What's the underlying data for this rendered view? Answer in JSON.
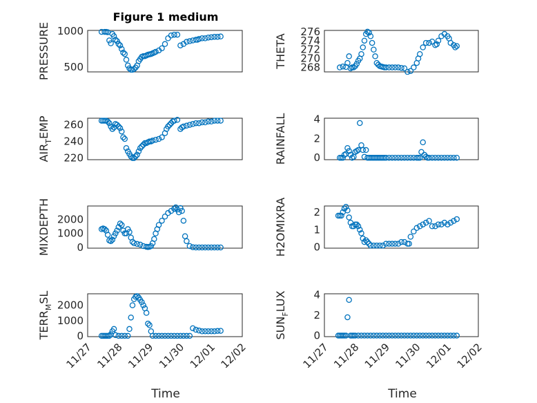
{
  "figure": {
    "title": "Figure 1 medium",
    "marker_color": "#0072bd",
    "grid": "on (major and minor)",
    "xlabel": "Time",
    "x_ticks": [
      "11/27",
      "11/28",
      "11/29",
      "11/30",
      "12/01",
      "12/02"
    ]
  },
  "chart_data": [
    {
      "type": "scatter",
      "name": "PRESSURE",
      "ylabel": "PRESSURE",
      "title": "Figure 1 medium",
      "xlabel": "",
      "xlim": [
        0,
        5
      ],
      "ylim": [
        430,
        1010
      ],
      "yticks": [
        500,
        1000
      ],
      "x": [
        0.45,
        0.55,
        0.6,
        0.65,
        0.7,
        0.75,
        0.8,
        0.85,
        0.9,
        0.95,
        1.0,
        1.05,
        1.1,
        1.15,
        1.2,
        1.25,
        1.3,
        1.35,
        1.4,
        1.45,
        1.5,
        1.55,
        1.6,
        1.65,
        1.7,
        1.75,
        1.8,
        1.85,
        1.9,
        1.95,
        2.0,
        2.05,
        2.1,
        2.15,
        2.2,
        2.3,
        2.4,
        2.5,
        2.6,
        2.7,
        2.8,
        2.9,
        3.0,
        3.1,
        3.2,
        3.3,
        3.4,
        3.5,
        3.55,
        3.6,
        3.7,
        3.8,
        3.9,
        4.0,
        4.1,
        4.2,
        4.3
      ],
      "y": [
        990,
        990,
        990,
        985,
        870,
        830,
        960,
        930,
        880,
        860,
        820,
        800,
        750,
        700,
        680,
        600,
        520,
        480,
        460,
        460,
        470,
        490,
        520,
        580,
        610,
        640,
        650,
        650,
        660,
        670,
        675,
        680,
        690,
        700,
        710,
        730,
        760,
        820,
        900,
        940,
        950,
        950,
        800,
        820,
        850,
        860,
        870,
        880,
        880,
        890,
        900,
        900,
        910,
        915,
        920,
        920,
        925
      ]
    },
    {
      "type": "scatter",
      "name": "THETA",
      "ylabel": "THETA",
      "xlim": [
        0,
        5
      ],
      "ylim": [
        267,
        276.3
      ],
      "yticks": [
        268,
        270,
        272,
        274,
        276
      ],
      "x": [
        0.5,
        0.6,
        0.7,
        0.75,
        0.8,
        0.85,
        0.9,
        0.95,
        1.0,
        1.05,
        1.1,
        1.15,
        1.2,
        1.25,
        1.3,
        1.35,
        1.4,
        1.45,
        1.5,
        1.55,
        1.6,
        1.65,
        1.7,
        1.75,
        1.8,
        1.85,
        1.9,
        1.95,
        2.0,
        2.1,
        2.2,
        2.3,
        2.4,
        2.5,
        2.6,
        2.7,
        2.8,
        2.9,
        3.0,
        3.05,
        3.1,
        3.2,
        3.3,
        3.4,
        3.5,
        3.6,
        3.65,
        3.7,
        3.8,
        3.9,
        4.0,
        4.05,
        4.1,
        4.2,
        4.25,
        4.3
      ],
      "y": [
        268,
        268.2,
        268.1,
        269,
        270.5,
        267.8,
        268,
        268,
        268.3,
        268.8,
        269.5,
        270,
        271,
        272.5,
        274,
        275.5,
        276,
        275.8,
        275,
        273.5,
        272,
        270.5,
        269,
        268.6,
        268.3,
        268.2,
        268.1,
        268,
        268,
        268,
        268,
        268,
        268,
        267.9,
        267.8,
        267,
        267.2,
        268,
        269,
        270,
        271,
        272.5,
        273.5,
        273.5,
        273.8,
        273,
        273.2,
        274,
        275,
        275.5,
        275,
        274.5,
        273.5,
        273,
        272.5,
        272.8
      ]
    },
    {
      "type": "scatter",
      "name": "AIR_TEMP",
      "ylabel": "AIR_TEMP",
      "xlim": [
        0,
        5
      ],
      "ylim": [
        218,
        268
      ],
      "yticks": [
        220,
        240,
        260
      ],
      "x": [
        0.45,
        0.5,
        0.55,
        0.6,
        0.65,
        0.7,
        0.75,
        0.8,
        0.85,
        0.9,
        0.95,
        1.0,
        1.05,
        1.1,
        1.15,
        1.2,
        1.25,
        1.3,
        1.35,
        1.4,
        1.45,
        1.5,
        1.55,
        1.6,
        1.65,
        1.7,
        1.75,
        1.8,
        1.85,
        1.9,
        1.95,
        2.0,
        2.05,
        2.1,
        2.2,
        2.3,
        2.4,
        2.5,
        2.55,
        2.6,
        2.65,
        2.7,
        2.75,
        2.8,
        2.9,
        3.0,
        3.05,
        3.1,
        3.2,
        3.3,
        3.4,
        3.5,
        3.6,
        3.7,
        3.8,
        3.9,
        4.0,
        4.1,
        4.2,
        4.3
      ],
      "y": [
        265,
        265,
        265,
        265,
        264,
        262,
        258,
        255,
        257,
        261,
        260,
        258,
        256,
        252,
        245,
        243,
        232,
        228,
        225,
        222,
        220,
        220,
        222,
        224,
        228,
        232,
        234,
        236,
        238,
        238,
        239,
        240,
        240,
        241,
        242,
        243,
        245,
        250,
        255,
        258,
        260,
        262,
        264,
        265,
        266,
        255,
        257,
        258,
        259,
        260,
        261,
        262,
        262,
        263,
        263,
        264,
        264,
        265,
        265,
        265
      ]
    },
    {
      "type": "scatter",
      "name": "RAINFALL",
      "ylabel": "RAINFALL",
      "xlim": [
        0,
        5
      ],
      "ylim": [
        -0.2,
        4.1
      ],
      "yticks": [
        0,
        2,
        4
      ],
      "x": [
        0.5,
        0.55,
        0.6,
        0.65,
        0.7,
        0.75,
        0.8,
        0.85,
        0.9,
        0.95,
        1.0,
        1.05,
        1.1,
        1.15,
        1.2,
        1.25,
        1.3,
        1.35,
        1.4,
        1.45,
        1.5,
        1.55,
        1.6,
        1.65,
        1.7,
        1.75,
        1.8,
        1.85,
        1.9,
        1.95,
        2.0,
        2.1,
        2.2,
        2.3,
        2.4,
        2.5,
        2.6,
        2.7,
        2.8,
        2.9,
        3.0,
        3.05,
        3.1,
        3.15,
        3.2,
        3.25,
        3.3,
        3.35,
        3.4,
        3.5,
        3.6,
        3.7,
        3.8,
        3.9,
        4.0,
        4.1,
        4.2,
        4.3
      ],
      "y": [
        0,
        0,
        0,
        0.3,
        0.4,
        1.0,
        0.7,
        0.3,
        0,
        0.1,
        0.6,
        0.7,
        0.8,
        3.6,
        1.3,
        0.8,
        0.1,
        0.8,
        0,
        0,
        0,
        0,
        0,
        0,
        0,
        0,
        0,
        0,
        0,
        0,
        0,
        0,
        0,
        0,
        0,
        0,
        0,
        0,
        0,
        0,
        0,
        0,
        0,
        0.6,
        1.6,
        0.3,
        0.1,
        0,
        0,
        0,
        0,
        0,
        0,
        0,
        0,
        0,
        0,
        0
      ]
    },
    {
      "type": "scatter",
      "name": "MIXDEPTH",
      "ylabel": "MIXDEPTH",
      "xlim": [
        0,
        5
      ],
      "ylim": [
        -50,
        2950
      ],
      "yticks": [
        0,
        1000,
        2000
      ],
      "x": [
        0.45,
        0.5,
        0.55,
        0.6,
        0.65,
        0.7,
        0.75,
        0.8,
        0.85,
        0.9,
        0.95,
        1.0,
        1.05,
        1.1,
        1.15,
        1.2,
        1.25,
        1.3,
        1.35,
        1.4,
        1.45,
        1.5,
        1.6,
        1.7,
        1.8,
        1.9,
        1.95,
        2.0,
        2.05,
        2.1,
        2.15,
        2.2,
        2.25,
        2.3,
        2.4,
        2.5,
        2.6,
        2.7,
        2.8,
        2.85,
        2.9,
        2.95,
        3.0,
        3.05,
        3.1,
        3.15,
        3.2,
        3.3,
        3.4,
        3.5,
        3.6,
        3.7,
        3.8,
        3.9,
        4.0,
        4.1,
        4.2,
        4.3
      ],
      "y": [
        1300,
        1350,
        1300,
        1200,
        900,
        500,
        450,
        550,
        800,
        1000,
        1200,
        1450,
        1700,
        1600,
        1200,
        1000,
        1000,
        1300,
        1100,
        700,
        400,
        300,
        250,
        200,
        100,
        50,
        30,
        50,
        100,
        300,
        600,
        1000,
        1300,
        1600,
        1900,
        2200,
        2450,
        2600,
        2750,
        2850,
        2700,
        2500,
        2800,
        2600,
        1900,
        800,
        450,
        100,
        20,
        0,
        0,
        0,
        0,
        0,
        0,
        0,
        0,
        0
      ]
    },
    {
      "type": "scatter",
      "name": "H2OMIXRA",
      "ylabel": "H2OMIXRA",
      "xlim": [
        0,
        5
      ],
      "ylim": [
        -0.05,
        2.35
      ],
      "yticks": [
        0,
        1,
        2
      ],
      "x": [
        0.45,
        0.5,
        0.55,
        0.6,
        0.65,
        0.7,
        0.75,
        0.8,
        0.85,
        0.9,
        0.95,
        1.0,
        1.05,
        1.1,
        1.15,
        1.2,
        1.25,
        1.3,
        1.35,
        1.4,
        1.45,
        1.5,
        1.6,
        1.7,
        1.8,
        1.9,
        2.0,
        2.1,
        2.2,
        2.3,
        2.4,
        2.5,
        2.6,
        2.7,
        2.75,
        2.8,
        2.9,
        3.0,
        3.1,
        3.2,
        3.3,
        3.4,
        3.5,
        3.6,
        3.7,
        3.8,
        3.9,
        4.0,
        4.1,
        4.2,
        4.3
      ],
      "y": [
        1.8,
        1.8,
        1.8,
        2.0,
        2.2,
        2.3,
        2.1,
        1.7,
        1.4,
        1.2,
        1.2,
        1.3,
        1.3,
        1.2,
        1.0,
        0.8,
        0.5,
        0.3,
        0.4,
        0.3,
        0.2,
        0.1,
        0.1,
        0.1,
        0.1,
        0.1,
        0.2,
        0.2,
        0.2,
        0.2,
        0.2,
        0.3,
        0.3,
        0.2,
        0.2,
        0.6,
        0.9,
        1.1,
        1.2,
        1.3,
        1.4,
        1.5,
        1.2,
        1.2,
        1.3,
        1.3,
        1.4,
        1.3,
        1.4,
        1.5,
        1.6
      ]
    },
    {
      "type": "scatter",
      "name": "TERR_MSL",
      "ylabel": "TERR_MSL",
      "xlim": [
        0,
        5
      ],
      "ylim": [
        -50,
        2750
      ],
      "yticks": [
        0,
        1000,
        2000
      ],
      "x": [
        0.45,
        0.5,
        0.55,
        0.6,
        0.65,
        0.7,
        0.75,
        0.8,
        0.85,
        0.9,
        1.0,
        1.1,
        1.2,
        1.3,
        1.35,
        1.4,
        1.45,
        1.5,
        1.55,
        1.6,
        1.65,
        1.7,
        1.75,
        1.8,
        1.85,
        1.9,
        1.95,
        2.0,
        2.05,
        2.1,
        2.2,
        2.3,
        2.4,
        2.5,
        2.6,
        2.7,
        2.8,
        2.9,
        3.0,
        3.1,
        3.2,
        3.3,
        3.4,
        3.5,
        3.6,
        3.7,
        3.8,
        3.9,
        4.0,
        4.1,
        4.2,
        4.3
      ],
      "y": [
        0,
        0,
        0,
        0,
        0,
        0,
        100,
        300,
        450,
        50,
        0,
        0,
        0,
        0,
        450,
        1200,
        2000,
        2400,
        2550,
        2600,
        2500,
        2350,
        2200,
        2000,
        1800,
        1500,
        800,
        700,
        300,
        0,
        0,
        0,
        0,
        0,
        0,
        0,
        0,
        0,
        0,
        0,
        0,
        0,
        500,
        400,
        350,
        300,
        300,
        300,
        300,
        300,
        320,
        330
      ]
    },
    {
      "type": "scatter",
      "name": "SUN_FLUX",
      "ylabel": "SUN_FLUX",
      "xlim": [
        0,
        5
      ],
      "ylim": [
        -0.1,
        4.1
      ],
      "yticks": [
        0,
        2,
        4
      ],
      "x": [
        0.45,
        0.5,
        0.55,
        0.6,
        0.65,
        0.7,
        0.75,
        0.8,
        0.85,
        0.9,
        0.95,
        1.0,
        1.1,
        1.2,
        1.3,
        1.4,
        1.5,
        1.6,
        1.7,
        1.8,
        1.9,
        2.0,
        2.1,
        2.2,
        2.3,
        2.4,
        2.5,
        2.6,
        2.7,
        2.8,
        2.9,
        3.0,
        3.1,
        3.2,
        3.3,
        3.4,
        3.5,
        3.6,
        3.7,
        3.8,
        3.9,
        4.0,
        4.1,
        4.2,
        4.3
      ],
      "y": [
        0,
        0,
        0,
        0,
        0,
        0,
        1.8,
        3.5,
        0,
        0,
        0,
        0,
        0,
        0,
        0,
        0,
        0,
        0,
        0,
        0,
        0,
        0,
        0,
        0,
        0,
        0,
        0,
        0,
        0,
        0,
        0,
        0,
        0,
        0,
        0,
        0,
        0,
        0,
        0,
        0,
        0,
        0,
        0,
        0,
        0
      ]
    }
  ]
}
